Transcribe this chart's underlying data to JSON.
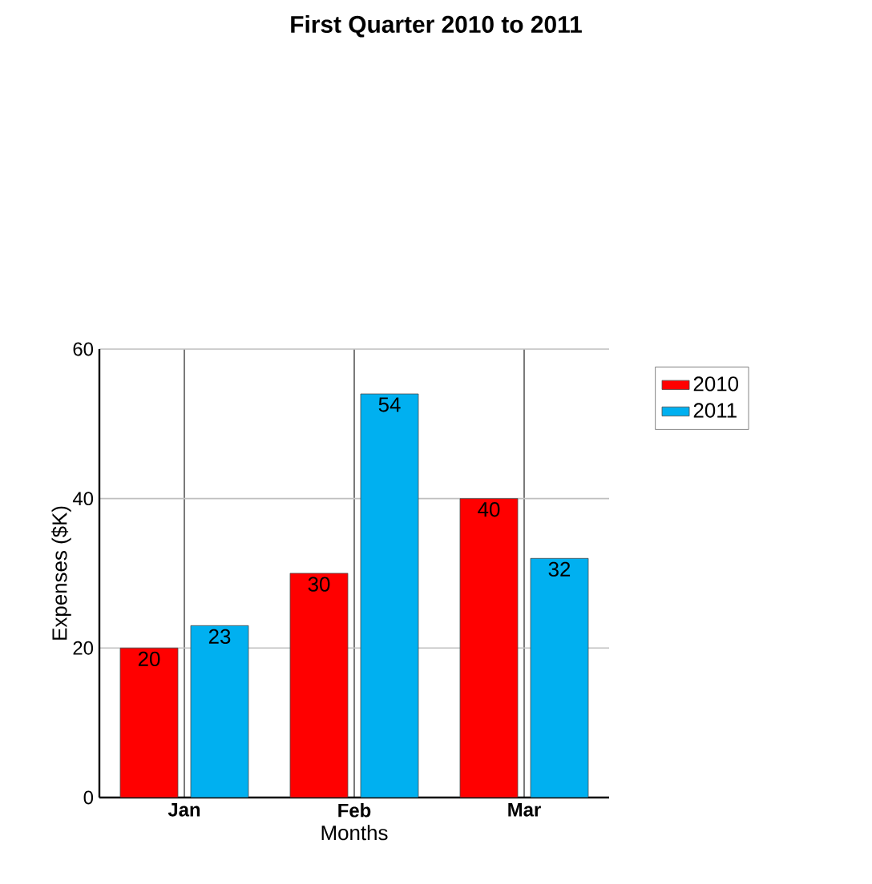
{
  "chart_data": {
    "type": "bar",
    "title": "First Quarter 2010 to 2011",
    "xlabel": "Months",
    "ylabel": "Expenses ($K)",
    "categories": [
      "Jan",
      "Feb",
      "Mar"
    ],
    "series": [
      {
        "name": "2010",
        "color": "#ff0000",
        "values": [
          20,
          30,
          40
        ]
      },
      {
        "name": "2011",
        "color": "#00b0f0",
        "values": [
          23,
          54,
          32
        ]
      }
    ],
    "ylim": [
      0,
      60
    ],
    "yticks": [
      0,
      20,
      40,
      60
    ],
    "grid": true,
    "legend": "top right",
    "data_labels": true
  }
}
